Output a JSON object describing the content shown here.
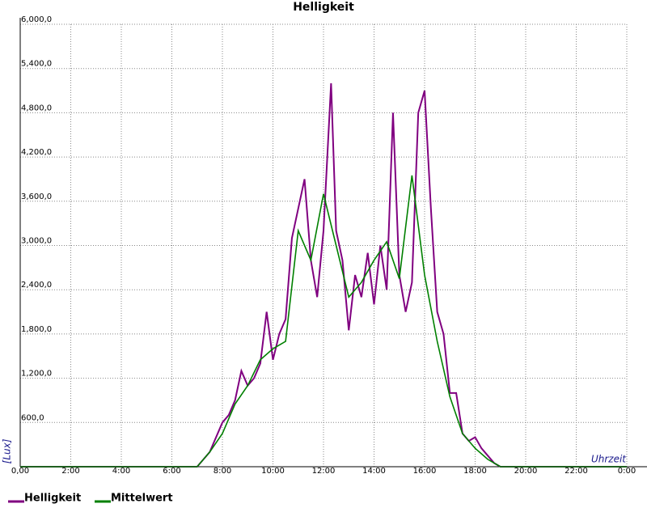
{
  "chart_data": {
    "type": "line",
    "title": "Helligkeit",
    "ylabel": "[Lux]",
    "xlabel": "Uhrzeit",
    "xlim": [
      0,
      24
    ],
    "ylim": [
      0,
      6000
    ],
    "grid": true,
    "legend": "bottom-left",
    "xticks": [
      {
        "value": 0,
        "label": "0,00"
      },
      {
        "value": 2,
        "label": "2:00"
      },
      {
        "value": 4,
        "label": "4:00"
      },
      {
        "value": 6,
        "label": "6:00"
      },
      {
        "value": 8,
        "label": "8:00"
      },
      {
        "value": 10,
        "label": "10:00"
      },
      {
        "value": 12,
        "label": "12:00"
      },
      {
        "value": 14,
        "label": "14:00"
      },
      {
        "value": 16,
        "label": "16:00"
      },
      {
        "value": 18,
        "label": "18:00"
      },
      {
        "value": 20,
        "label": "20:00"
      },
      {
        "value": 22,
        "label": "22:00"
      },
      {
        "value": 24,
        "label": "0:00"
      }
    ],
    "yticks": [
      {
        "value": 600,
        "label": "600,0"
      },
      {
        "value": 1200,
        "label": "1,200,0"
      },
      {
        "value": 1800,
        "label": "1,800,0"
      },
      {
        "value": 2400,
        "label": "2,400,0"
      },
      {
        "value": 3000,
        "label": "3,000,0"
      },
      {
        "value": 3600,
        "label": "3,600,0"
      },
      {
        "value": 4200,
        "label": "4,200,0"
      },
      {
        "value": 4800,
        "label": "4,800,0"
      },
      {
        "value": 5400,
        "label": "5,400,0"
      },
      {
        "value": 6000,
        "label": "6,000,0"
      }
    ],
    "series": [
      {
        "name": "Helligkeit",
        "color": "#800080",
        "x": [
          0,
          7,
          7.5,
          8,
          8.25,
          8.5,
          8.75,
          9,
          9.25,
          9.5,
          9.75,
          10,
          10.25,
          10.5,
          10.75,
          11,
          11.25,
          11.5,
          11.75,
          12,
          12.3,
          12.5,
          12.75,
          13,
          13.25,
          13.5,
          13.75,
          14,
          14.25,
          14.5,
          14.75,
          15,
          15.25,
          15.5,
          15.75,
          16,
          16.25,
          16.5,
          16.75,
          17,
          17.25,
          17.5,
          17.75,
          18,
          18.25,
          18.5,
          18.75,
          19,
          24
        ],
        "values": [
          0,
          0,
          200,
          600,
          700,
          900,
          1300,
          1100,
          1200,
          1400,
          2100,
          1450,
          1800,
          2000,
          3100,
          3500,
          3900,
          2800,
          2300,
          3200,
          5200,
          3200,
          2800,
          1850,
          2600,
          2300,
          2900,
          2200,
          3000,
          2400,
          4800,
          2600,
          2100,
          2500,
          4800,
          5100,
          3500,
          2100,
          1800,
          1000,
          1000,
          450,
          350,
          400,
          250,
          150,
          50,
          0,
          0
        ]
      },
      {
        "name": "Mittelwert",
        "color": "#008000",
        "x": [
          0,
          7,
          7.5,
          8,
          8.5,
          9,
          9.5,
          10,
          10.5,
          11,
          11.5,
          12,
          12.5,
          13,
          13.5,
          14,
          14.5,
          15,
          15.5,
          16,
          16.5,
          17,
          17.5,
          18,
          18.5,
          19,
          24
        ],
        "values": [
          0,
          0,
          200,
          450,
          850,
          1100,
          1450,
          1600,
          1700,
          3200,
          2800,
          3700,
          3000,
          2300,
          2500,
          2800,
          3050,
          2550,
          3950,
          2600,
          1700,
          950,
          450,
          250,
          100,
          0,
          0
        ]
      }
    ]
  }
}
